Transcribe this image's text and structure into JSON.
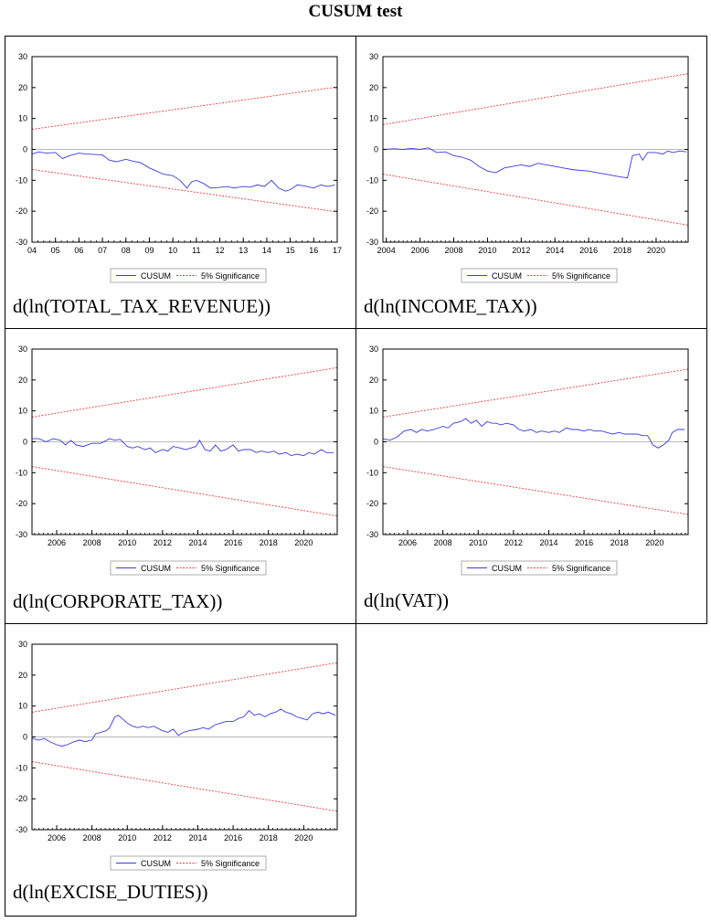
{
  "page": {
    "title": "CUSUM test"
  },
  "legend": {
    "cusum_label": "CUSUM",
    "significance_label": "5% Significance"
  },
  "colors": {
    "cusum": "#3a3ae0",
    "bounds": "#e83c3c",
    "zero": "#b8b8b8",
    "axis": "#000000"
  },
  "chart_data": [
    {
      "type": "line",
      "caption": "d(ln(TOTAL_TAX_REVENUE))",
      "ylim": [
        -30,
        30
      ],
      "yticks": [
        30,
        20,
        10,
        0,
        -10,
        -20,
        -30
      ],
      "xlim": [
        2004.0,
        2017.0
      ],
      "xticks": [
        {
          "x": 2004.0,
          "label": "04"
        },
        {
          "x": 2005.0,
          "label": "05"
        },
        {
          "x": 2006.0,
          "label": "06"
        },
        {
          "x": 2007.0,
          "label": "07"
        },
        {
          "x": 2008.0,
          "label": "08"
        },
        {
          "x": 2009.0,
          "label": "09"
        },
        {
          "x": 2010.0,
          "label": "10"
        },
        {
          "x": 2011.0,
          "label": "11"
        },
        {
          "x": 2012.0,
          "label": "12"
        },
        {
          "x": 2013.0,
          "label": "13"
        },
        {
          "x": 2014.0,
          "label": "14"
        },
        {
          "x": 2015.0,
          "label": "15"
        },
        {
          "x": 2016.0,
          "label": "16"
        },
        {
          "x": 2017.0,
          "label": "17"
        }
      ],
      "upper_bound": [
        [
          2004.0,
          6.5
        ],
        [
          2017.0,
          20.2
        ]
      ],
      "lower_bound": [
        [
          2004.0,
          -6.5
        ],
        [
          2017.0,
          -20.2
        ]
      ],
      "cusum": [
        [
          2004.0,
          -1.5
        ],
        [
          2004.3,
          -0.8
        ],
        [
          2004.6,
          -1.2
        ],
        [
          2005.0,
          -1.0
        ],
        [
          2005.3,
          -3.0
        ],
        [
          2005.6,
          -2.0
        ],
        [
          2006.0,
          -1.2
        ],
        [
          2006.3,
          -1.5
        ],
        [
          2006.6,
          -1.6
        ],
        [
          2007.0,
          -1.8
        ],
        [
          2007.3,
          -3.5
        ],
        [
          2007.6,
          -4.0
        ],
        [
          2008.0,
          -3.2
        ],
        [
          2008.3,
          -3.8
        ],
        [
          2008.6,
          -4.2
        ],
        [
          2009.0,
          -6.0
        ],
        [
          2009.3,
          -7.0
        ],
        [
          2009.6,
          -8.0
        ],
        [
          2010.0,
          -8.5
        ],
        [
          2010.3,
          -10.0
        ],
        [
          2010.6,
          -12.5
        ],
        [
          2010.8,
          -10.5
        ],
        [
          2011.0,
          -10.0
        ],
        [
          2011.3,
          -11.0
        ],
        [
          2011.6,
          -12.5
        ],
        [
          2012.0,
          -12.3
        ],
        [
          2012.3,
          -12.0
        ],
        [
          2012.6,
          -12.5
        ],
        [
          2013.0,
          -12.0
        ],
        [
          2013.3,
          -12.2
        ],
        [
          2013.6,
          -11.5
        ],
        [
          2013.9,
          -12.0
        ],
        [
          2014.2,
          -10.0
        ],
        [
          2014.5,
          -12.5
        ],
        [
          2014.8,
          -13.5
        ],
        [
          2015.0,
          -13.0
        ],
        [
          2015.3,
          -11.5
        ],
        [
          2015.6,
          -11.8
        ],
        [
          2016.0,
          -12.5
        ],
        [
          2016.3,
          -11.5
        ],
        [
          2016.6,
          -12.0
        ],
        [
          2016.9,
          -11.5
        ]
      ]
    },
    {
      "type": "line",
      "caption": "d(ln(INCOME_TAX))",
      "ylim": [
        -30,
        30
      ],
      "yticks": [
        30,
        20,
        10,
        0,
        -10,
        -20,
        -30
      ],
      "xlim": [
        2003.8,
        2021.9
      ],
      "xticks": [
        {
          "x": 2004,
          "label": "2004"
        },
        {
          "x": 2006,
          "label": "2006"
        },
        {
          "x": 2008,
          "label": "2008"
        },
        {
          "x": 2010,
          "label": "2010"
        },
        {
          "x": 2012,
          "label": "2012"
        },
        {
          "x": 2014,
          "label": "2014"
        },
        {
          "x": 2016,
          "label": "2016"
        },
        {
          "x": 2018,
          "label": "2018"
        },
        {
          "x": 2020,
          "label": "2020"
        }
      ],
      "upper_bound": [
        [
          2003.8,
          8.0
        ],
        [
          2021.9,
          24.5
        ]
      ],
      "lower_bound": [
        [
          2003.8,
          -8.0
        ],
        [
          2021.9,
          -24.5
        ]
      ],
      "cusum": [
        [
          2003.8,
          0.0
        ],
        [
          2004.5,
          0.2
        ],
        [
          2005.0,
          0.0
        ],
        [
          2005.5,
          0.3
        ],
        [
          2006.0,
          0.0
        ],
        [
          2006.5,
          0.5
        ],
        [
          2007.0,
          -1.0
        ],
        [
          2007.5,
          -0.8
        ],
        [
          2008.0,
          -2.0
        ],
        [
          2008.5,
          -2.5
        ],
        [
          2009.0,
          -3.5
        ],
        [
          2009.5,
          -5.5
        ],
        [
          2010.0,
          -7.0
        ],
        [
          2010.5,
          -7.5
        ],
        [
          2011.0,
          -6.0
        ],
        [
          2011.5,
          -5.5
        ],
        [
          2012.0,
          -5.0
        ],
        [
          2012.5,
          -5.5
        ],
        [
          2013.0,
          -4.5
        ],
        [
          2013.5,
          -5.0
        ],
        [
          2014.0,
          -5.5
        ],
        [
          2014.5,
          -6.0
        ],
        [
          2015.0,
          -6.5
        ],
        [
          2015.5,
          -6.8
        ],
        [
          2016.0,
          -7.0
        ],
        [
          2016.5,
          -7.5
        ],
        [
          2017.0,
          -8.0
        ],
        [
          2017.5,
          -8.5
        ],
        [
          2018.0,
          -9.0
        ],
        [
          2018.3,
          -9.2
        ],
        [
          2018.6,
          -2.0
        ],
        [
          2019.0,
          -1.5
        ],
        [
          2019.2,
          -3.5
        ],
        [
          2019.5,
          -1.0
        ],
        [
          2020.0,
          -1.0
        ],
        [
          2020.4,
          -1.5
        ],
        [
          2020.7,
          -0.5
        ],
        [
          2021.0,
          -1.0
        ],
        [
          2021.4,
          -0.5
        ],
        [
          2021.8,
          -0.8
        ]
      ]
    },
    {
      "type": "line",
      "caption": "d(ln(CORPORATE_TAX))",
      "ylim": [
        -30,
        30
      ],
      "yticks": [
        30,
        20,
        10,
        0,
        -10,
        -20,
        -30
      ],
      "xlim": [
        2004.6,
        2021.9
      ],
      "xticks": [
        {
          "x": 2006,
          "label": "2006"
        },
        {
          "x": 2008,
          "label": "2008"
        },
        {
          "x": 2010,
          "label": "2010"
        },
        {
          "x": 2012,
          "label": "2012"
        },
        {
          "x": 2014,
          "label": "2014"
        },
        {
          "x": 2016,
          "label": "2016"
        },
        {
          "x": 2018,
          "label": "2018"
        },
        {
          "x": 2020,
          "label": "2020"
        }
      ],
      "upper_bound": [
        [
          2004.6,
          8.0
        ],
        [
          2021.9,
          24.0
        ]
      ],
      "lower_bound": [
        [
          2004.6,
          -8.0
        ],
        [
          2021.9,
          -24.0
        ]
      ],
      "cusum": [
        [
          2004.6,
          1.0
        ],
        [
          2005.0,
          1.0
        ],
        [
          2005.4,
          0.0
        ],
        [
          2005.8,
          1.0
        ],
        [
          2006.2,
          0.5
        ],
        [
          2006.5,
          -1.0
        ],
        [
          2006.8,
          0.5
        ],
        [
          2007.1,
          -1.0
        ],
        [
          2007.5,
          -1.5
        ],
        [
          2008.0,
          -0.5
        ],
        [
          2008.5,
          -0.5
        ],
        [
          2009.0,
          1.0
        ],
        [
          2009.3,
          0.5
        ],
        [
          2009.6,
          0.8
        ],
        [
          2010.0,
          -1.5
        ],
        [
          2010.3,
          -2.0
        ],
        [
          2010.6,
          -1.5
        ],
        [
          2011.0,
          -2.5
        ],
        [
          2011.3,
          -2.0
        ],
        [
          2011.6,
          -3.5
        ],
        [
          2012.0,
          -2.5
        ],
        [
          2012.3,
          -3.0
        ],
        [
          2012.6,
          -1.5
        ],
        [
          2013.0,
          -2.0
        ],
        [
          2013.3,
          -2.5
        ],
        [
          2013.6,
          -2.0
        ],
        [
          2013.9,
          -1.5
        ],
        [
          2014.1,
          0.5
        ],
        [
          2014.4,
          -2.5
        ],
        [
          2014.7,
          -3.0
        ],
        [
          2015.0,
          -1.0
        ],
        [
          2015.3,
          -3.0
        ],
        [
          2015.6,
          -2.5
        ],
        [
          2016.0,
          -1.0
        ],
        [
          2016.3,
          -3.0
        ],
        [
          2016.6,
          -2.5
        ],
        [
          2017.0,
          -2.5
        ],
        [
          2017.3,
          -3.5
        ],
        [
          2017.6,
          -3.0
        ],
        [
          2018.0,
          -3.5
        ],
        [
          2018.3,
          -3.0
        ],
        [
          2018.6,
          -4.0
        ],
        [
          2019.0,
          -3.5
        ],
        [
          2019.3,
          -4.5
        ],
        [
          2019.6,
          -4.0
        ],
        [
          2020.0,
          -4.5
        ],
        [
          2020.3,
          -3.5
        ],
        [
          2020.6,
          -4.0
        ],
        [
          2021.0,
          -2.5
        ],
        [
          2021.3,
          -3.5
        ],
        [
          2021.7,
          -3.5
        ]
      ]
    },
    {
      "type": "line",
      "caption": "d(ln(VAT))",
      "ylim": [
        -30,
        30
      ],
      "yticks": [
        30,
        20,
        10,
        0,
        -10,
        -20,
        -30
      ],
      "xlim": [
        2004.6,
        2021.9
      ],
      "xticks": [
        {
          "x": 2006,
          "label": "2006"
        },
        {
          "x": 2008,
          "label": "2008"
        },
        {
          "x": 2010,
          "label": "2010"
        },
        {
          "x": 2012,
          "label": "2012"
        },
        {
          "x": 2014,
          "label": "2014"
        },
        {
          "x": 2016,
          "label": "2016"
        },
        {
          "x": 2018,
          "label": "2018"
        },
        {
          "x": 2020,
          "label": "2020"
        }
      ],
      "upper_bound": [
        [
          2004.6,
          8.0
        ],
        [
          2021.9,
          23.5
        ]
      ],
      "lower_bound": [
        [
          2004.6,
          -8.0
        ],
        [
          2021.9,
          -23.5
        ]
      ],
      "cusum": [
        [
          2004.6,
          1.0
        ],
        [
          2005.0,
          0.5
        ],
        [
          2005.4,
          1.5
        ],
        [
          2005.8,
          3.5
        ],
        [
          2006.2,
          4.0
        ],
        [
          2006.5,
          3.0
        ],
        [
          2006.8,
          4.0
        ],
        [
          2007.1,
          3.5
        ],
        [
          2007.5,
          4.0
        ],
        [
          2008.0,
          5.0
        ],
        [
          2008.3,
          4.5
        ],
        [
          2008.6,
          6.0
        ],
        [
          2009.0,
          6.5
        ],
        [
          2009.3,
          7.5
        ],
        [
          2009.6,
          6.0
        ],
        [
          2009.9,
          7.0
        ],
        [
          2010.2,
          5.0
        ],
        [
          2010.5,
          6.5
        ],
        [
          2010.8,
          6.0
        ],
        [
          2011.0,
          6.0
        ],
        [
          2011.3,
          5.5
        ],
        [
          2011.6,
          6.0
        ],
        [
          2012.0,
          5.5
        ],
        [
          2012.3,
          4.0
        ],
        [
          2012.6,
          3.5
        ],
        [
          2013.0,
          4.0
        ],
        [
          2013.3,
          3.0
        ],
        [
          2013.6,
          3.5
        ],
        [
          2014.0,
          3.0
        ],
        [
          2014.3,
          3.5
        ],
        [
          2014.6,
          3.0
        ],
        [
          2015.0,
          4.5
        ],
        [
          2015.3,
          4.0
        ],
        [
          2015.6,
          4.0
        ],
        [
          2016.0,
          3.5
        ],
        [
          2016.3,
          4.0
        ],
        [
          2016.6,
          3.5
        ],
        [
          2017.0,
          3.5
        ],
        [
          2017.3,
          3.0
        ],
        [
          2017.6,
          2.5
        ],
        [
          2018.0,
          3.0
        ],
        [
          2018.3,
          2.5
        ],
        [
          2018.6,
          2.5
        ],
        [
          2019.0,
          2.5
        ],
        [
          2019.3,
          2.0
        ],
        [
          2019.6,
          2.0
        ],
        [
          2019.9,
          -1.0
        ],
        [
          2020.2,
          -2.0
        ],
        [
          2020.5,
          -1.0
        ],
        [
          2020.8,
          0.5
        ],
        [
          2021.0,
          3.0
        ],
        [
          2021.3,
          4.0
        ],
        [
          2021.7,
          4.0
        ]
      ]
    },
    {
      "type": "line",
      "caption": "d(ln(EXCISE_DUTIES))",
      "ylim": [
        -30,
        30
      ],
      "yticks": [
        30,
        20,
        10,
        0,
        -10,
        -20,
        -30
      ],
      "xlim": [
        2004.6,
        2021.9
      ],
      "xticks": [
        {
          "x": 2006,
          "label": "2006"
        },
        {
          "x": 2008,
          "label": "2008"
        },
        {
          "x": 2010,
          "label": "2010"
        },
        {
          "x": 2012,
          "label": "2012"
        },
        {
          "x": 2014,
          "label": "2014"
        },
        {
          "x": 2016,
          "label": "2016"
        },
        {
          "x": 2018,
          "label": "2018"
        },
        {
          "x": 2020,
          "label": "2020"
        }
      ],
      "upper_bound": [
        [
          2004.6,
          8.0
        ],
        [
          2021.9,
          24.0
        ]
      ],
      "lower_bound": [
        [
          2004.6,
          -8.0
        ],
        [
          2021.9,
          -24.0
        ]
      ],
      "cusum": [
        [
          2004.6,
          -0.5
        ],
        [
          2005.0,
          -1.0
        ],
        [
          2005.3,
          -0.5
        ],
        [
          2005.6,
          -1.5
        ],
        [
          2006.0,
          -2.5
        ],
        [
          2006.3,
          -3.0
        ],
        [
          2006.6,
          -2.5
        ],
        [
          2007.0,
          -1.5
        ],
        [
          2007.3,
          -1.0
        ],
        [
          2007.6,
          -1.5
        ],
        [
          2008.0,
          -1.0
        ],
        [
          2008.2,
          1.0
        ],
        [
          2008.5,
          1.5
        ],
        [
          2008.8,
          2.0
        ],
        [
          2009.0,
          3.0
        ],
        [
          2009.3,
          6.5
        ],
        [
          2009.5,
          7.0
        ],
        [
          2009.7,
          6.0
        ],
        [
          2010.0,
          4.5
        ],
        [
          2010.3,
          3.5
        ],
        [
          2010.6,
          3.0
        ],
        [
          2010.9,
          3.5
        ],
        [
          2011.2,
          3.0
        ],
        [
          2011.5,
          3.5
        ],
        [
          2012.0,
          2.0
        ],
        [
          2012.3,
          1.5
        ],
        [
          2012.6,
          2.5
        ],
        [
          2012.9,
          0.5
        ],
        [
          2013.2,
          1.5
        ],
        [
          2013.5,
          2.0
        ],
        [
          2014.0,
          2.5
        ],
        [
          2014.3,
          3.0
        ],
        [
          2014.6,
          2.5
        ],
        [
          2015.0,
          4.0
        ],
        [
          2015.3,
          4.5
        ],
        [
          2015.6,
          5.0
        ],
        [
          2016.0,
          5.0
        ],
        [
          2016.3,
          6.0
        ],
        [
          2016.6,
          6.5
        ],
        [
          2016.9,
          8.5
        ],
        [
          2017.2,
          7.0
        ],
        [
          2017.5,
          7.5
        ],
        [
          2017.8,
          6.5
        ],
        [
          2018.1,
          7.5
        ],
        [
          2018.4,
          8.0
        ],
        [
          2018.7,
          9.0
        ],
        [
          2019.0,
          8.0
        ],
        [
          2019.3,
          7.5
        ],
        [
          2019.6,
          6.5
        ],
        [
          2019.9,
          6.0
        ],
        [
          2020.2,
          5.5
        ],
        [
          2020.5,
          7.5
        ],
        [
          2020.8,
          8.0
        ],
        [
          2021.1,
          7.5
        ],
        [
          2021.4,
          8.0
        ],
        [
          2021.8,
          7.0
        ]
      ]
    }
  ]
}
